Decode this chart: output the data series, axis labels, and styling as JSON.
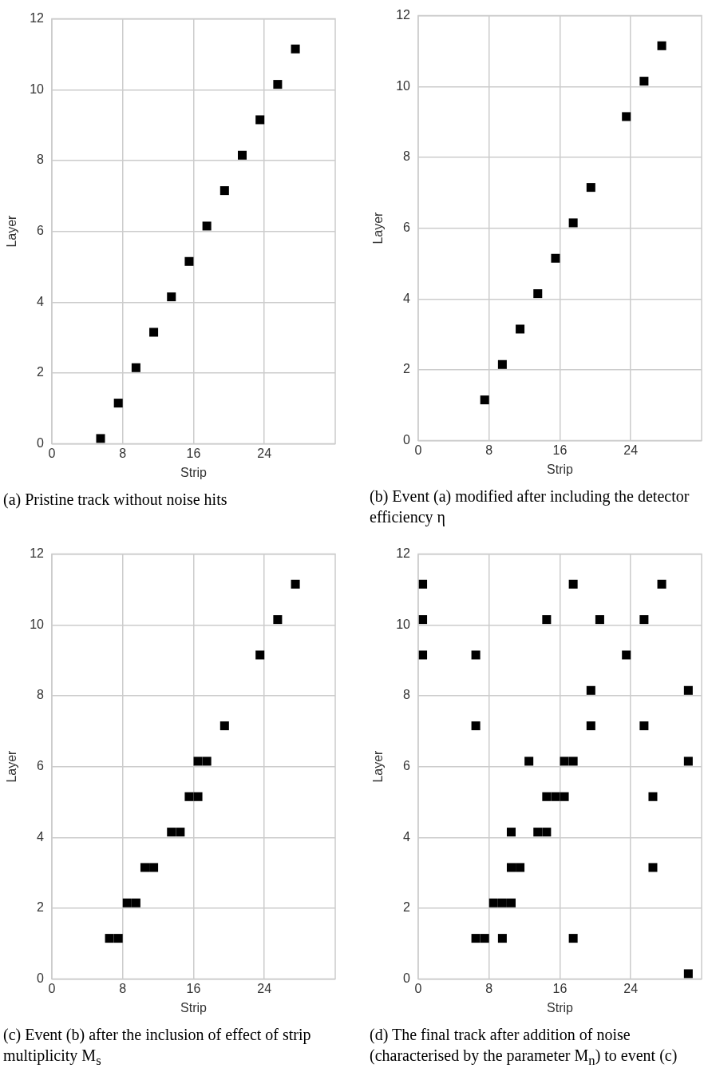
{
  "chart_data": [
    {
      "type": "scatter",
      "title": "(a) Pristine track without noise hits",
      "xlabel": "Strip",
      "ylabel": "Layer",
      "color": "#000000",
      "marker": "square",
      "grid": true,
      "xlim": [
        0,
        32
      ],
      "ylim": [
        0,
        12
      ],
      "xticks": [
        0,
        8,
        16,
        24
      ],
      "yticks": [
        0,
        2,
        4,
        6,
        8,
        10,
        12
      ],
      "x": [
        5.5,
        7.5,
        9.5,
        11.5,
        13.5,
        15.5,
        17.5,
        19.5,
        21.5,
        23.5,
        25.5,
        27.5
      ],
      "values": [
        0.15,
        1.15,
        2.15,
        3.15,
        4.15,
        5.15,
        6.15,
        7.15,
        8.15,
        9.15,
        10.15,
        11.15
      ]
    },
    {
      "type": "scatter",
      "title": "(b) Event (a) modified after including the detector efficiency η",
      "xlabel": "Strip",
      "ylabel": "Layer",
      "color": "#000000",
      "marker": "square",
      "grid": true,
      "xlim": [
        0,
        32
      ],
      "ylim": [
        0,
        12
      ],
      "xticks": [
        0,
        8,
        16,
        24
      ],
      "yticks": [
        0,
        2,
        4,
        6,
        8,
        10,
        12
      ],
      "x": [
        7.5,
        9.5,
        11.5,
        13.5,
        15.5,
        17.5,
        19.5,
        23.5,
        25.5,
        27.5
      ],
      "values": [
        1.15,
        2.15,
        3.15,
        4.15,
        5.15,
        6.15,
        7.15,
        9.15,
        10.15,
        11.15
      ]
    },
    {
      "type": "scatter",
      "title": "(c) Event (b) after the inclusion of effect of strip multiplicity M$_{s}$",
      "xlabel": "Strip",
      "ylabel": "Layer",
      "color": "#000000",
      "marker": "square",
      "grid": true,
      "xlim": [
        0,
        32
      ],
      "ylim": [
        0,
        12
      ],
      "xticks": [
        0,
        8,
        16,
        24
      ],
      "yticks": [
        0,
        2,
        4,
        6,
        8,
        10,
        12
      ],
      "x": [
        6.5,
        7.5,
        8.5,
        9.5,
        10.5,
        11.5,
        13.5,
        14.5,
        15.5,
        16.5,
        16.5,
        17.5,
        19.5,
        23.5,
        25.5,
        27.5
      ],
      "values": [
        1.15,
        1.15,
        2.15,
        2.15,
        3.15,
        3.15,
        4.15,
        4.15,
        5.15,
        5.15,
        6.15,
        6.15,
        7.15,
        9.15,
        10.15,
        11.15
      ]
    },
    {
      "type": "scatter",
      "title": "(d) The final track after addition of noise (characterised by the parameter M$_{n}$) to event (c)",
      "xlabel": "Strip",
      "ylabel": "Layer",
      "color": "#000000",
      "marker": "square",
      "grid": true,
      "xlim": [
        0,
        32
      ],
      "ylim": [
        0,
        12
      ],
      "xticks": [
        0,
        8,
        16,
        24
      ],
      "yticks": [
        0,
        2,
        4,
        6,
        8,
        10,
        12
      ],
      "x": [
        30.5,
        6.5,
        7.5,
        9.5,
        17.5,
        8.5,
        9.5,
        10.5,
        10.5,
        11.5,
        26.5,
        10.5,
        13.5,
        14.5,
        14.5,
        15.5,
        16.5,
        26.5,
        12.5,
        16.5,
        17.5,
        30.5,
        6.5,
        19.5,
        25.5,
        19.5,
        30.5,
        0.5,
        6.5,
        23.5,
        0.5,
        14.5,
        20.5,
        25.5,
        0.5,
        17.5,
        27.5
      ],
      "values": [
        0.15,
        1.15,
        1.15,
        1.15,
        1.15,
        2.15,
        2.15,
        2.15,
        3.15,
        3.15,
        3.15,
        4.15,
        4.15,
        4.15,
        5.15,
        5.15,
        5.15,
        5.15,
        6.15,
        6.15,
        6.15,
        6.15,
        7.15,
        7.15,
        7.15,
        8.15,
        8.15,
        9.15,
        9.15,
        9.15,
        10.15,
        10.15,
        10.15,
        10.15,
        11.15,
        11.15,
        11.15
      ]
    }
  ]
}
